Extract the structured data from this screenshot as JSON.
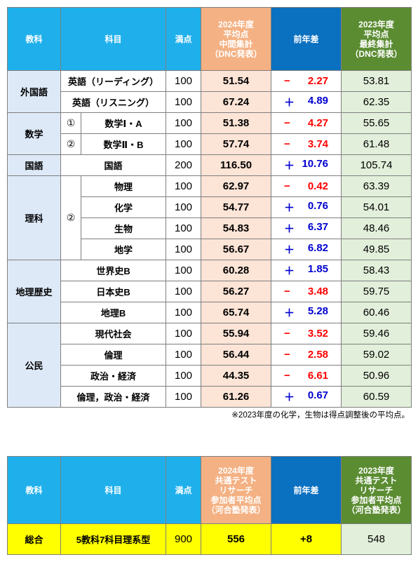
{
  "table1": {
    "header": [
      "教科",
      "科目",
      "満点",
      "2024年度\n平均点\n中間集計\n（DNC発表）",
      "前年差",
      "2023年度\n平均点\n最終集計\n（DNC発表）"
    ],
    "groups": [
      {
        "subject": "外国語",
        "rows": [
          {
            "name": "英語（リーディング）",
            "full": "100",
            "avg2024": "51.54",
            "sign": "−",
            "diff": "2.27",
            "avg2023": "53.81"
          },
          {
            "name": "英語（リスニング）",
            "full": "100",
            "avg2024": "67.24",
            "sign": "＋",
            "diff": "4.89",
            "avg2023": "62.35"
          }
        ]
      },
      {
        "subject": "数学",
        "rows": [
          {
            "marker": "①",
            "name": "数学Ⅰ・A",
            "full": "100",
            "avg2024": "51.38",
            "sign": "−",
            "diff": "4.27",
            "avg2023": "55.65"
          },
          {
            "marker": "②",
            "name": "数学Ⅱ・B",
            "full": "100",
            "avg2024": "57.74",
            "sign": "−",
            "diff": "3.74",
            "avg2023": "61.48"
          }
        ]
      },
      {
        "subject": "国語",
        "rows": [
          {
            "name": "国語",
            "full": "200",
            "avg2024": "116.50",
            "sign": "＋",
            "diff": "10.76",
            "avg2023": "105.74"
          }
        ]
      },
      {
        "subject": "理科",
        "marker": "②",
        "rows": [
          {
            "name": "物理",
            "full": "100",
            "avg2024": "62.97",
            "sign": "−",
            "diff": "0.42",
            "avg2023": "63.39"
          },
          {
            "name": "化学",
            "full": "100",
            "avg2024": "54.77",
            "sign": "＋",
            "diff": "0.76",
            "avg2023": "54.01"
          },
          {
            "name": "生物",
            "full": "100",
            "avg2024": "54.83",
            "sign": "＋",
            "diff": "6.37",
            "avg2023": "48.46"
          },
          {
            "name": "地学",
            "full": "100",
            "avg2024": "56.67",
            "sign": "＋",
            "diff": "6.82",
            "avg2023": "49.85"
          }
        ]
      },
      {
        "subject": "地理歴史",
        "rows": [
          {
            "name": "世界史B",
            "full": "100",
            "avg2024": "60.28",
            "sign": "＋",
            "diff": "1.85",
            "avg2023": "58.43"
          },
          {
            "name": "日本史B",
            "full": "100",
            "avg2024": "56.27",
            "sign": "−",
            "diff": "3.48",
            "avg2023": "59.75"
          },
          {
            "name": "地理B",
            "full": "100",
            "avg2024": "65.74",
            "sign": "＋",
            "diff": "5.28",
            "avg2023": "60.46"
          }
        ]
      },
      {
        "subject": "公民",
        "rows": [
          {
            "name": "現代社会",
            "full": "100",
            "avg2024": "55.94",
            "sign": "−",
            "diff": "3.52",
            "avg2023": "59.46"
          },
          {
            "name": "倫理",
            "full": "100",
            "avg2024": "56.44",
            "sign": "−",
            "diff": "2.58",
            "avg2023": "59.02"
          },
          {
            "name": "政治・経済",
            "full": "100",
            "avg2024": "44.35",
            "sign": "−",
            "diff": "6.61",
            "avg2023": "50.96"
          },
          {
            "name": "倫理，政治・経済",
            "full": "100",
            "avg2024": "61.26",
            "sign": "＋",
            "diff": "0.67",
            "avg2023": "60.59"
          }
        ]
      }
    ],
    "note": "※2023年度の化学，生物は得点調整後の平均点。"
  },
  "table2": {
    "header": [
      "教科",
      "科目",
      "満点",
      "2024年度\n共通テスト\nリサーチ\n参加者平均点\n（河合塾発表）",
      "前年差",
      "2023年度\n共通テスト\nリサーチ\n参加者平均点\n（河合塾発表）"
    ],
    "row": {
      "subject": "総合",
      "name": "5教科7科目理系型",
      "full": "900",
      "avg2024": "556",
      "diff": "+8",
      "avg2023": "548"
    }
  }
}
